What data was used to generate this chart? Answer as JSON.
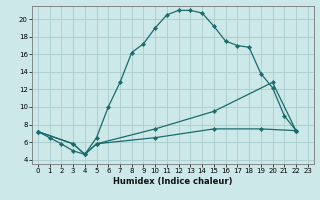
{
  "xlabel": "Humidex (Indice chaleur)",
  "bg_color": "#cce8e8",
  "grid_color": "#aacccc",
  "line_color": "#1a6b6b",
  "xlim": [
    -0.5,
    23.5
  ],
  "ylim": [
    3.5,
    21.5
  ],
  "yticks": [
    4,
    6,
    8,
    10,
    12,
    14,
    16,
    18,
    20
  ],
  "xticks": [
    0,
    1,
    2,
    3,
    4,
    5,
    6,
    7,
    8,
    9,
    10,
    11,
    12,
    13,
    14,
    15,
    16,
    17,
    18,
    19,
    20,
    21,
    22,
    23
  ],
  "line1_x": [
    0,
    1,
    2,
    3,
    4,
    5,
    6,
    7,
    8,
    9,
    10,
    11,
    12,
    13,
    14,
    15,
    16,
    17,
    18,
    19,
    20,
    21,
    22
  ],
  "line1_y": [
    7.2,
    6.5,
    5.8,
    5.0,
    4.6,
    6.5,
    10.0,
    12.8,
    16.2,
    17.2,
    19.0,
    20.5,
    21.0,
    21.0,
    20.7,
    19.2,
    17.5,
    17.0,
    16.8,
    13.8,
    12.2,
    9.0,
    7.3
  ],
  "line2_x": [
    0,
    3,
    4,
    5,
    10,
    15,
    20,
    22
  ],
  "line2_y": [
    7.2,
    5.8,
    4.6,
    5.8,
    7.5,
    9.5,
    12.8,
    7.3
  ],
  "line3_x": [
    0,
    3,
    4,
    5,
    10,
    15,
    19,
    22
  ],
  "line3_y": [
    7.2,
    5.8,
    4.6,
    5.8,
    6.5,
    7.5,
    7.5,
    7.3
  ]
}
